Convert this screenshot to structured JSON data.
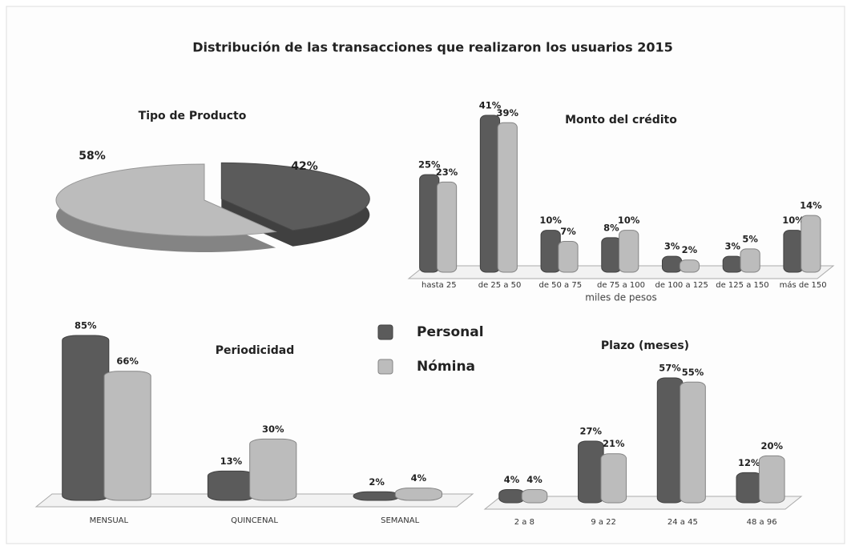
{
  "title": "Distribución de las transacciones que realizaron los usuarios 2015",
  "legend": [
    {
      "name": "Personal",
      "color": "#5b5b5b"
    },
    {
      "name": "Nómina",
      "color": "#bcbcbc"
    }
  ],
  "chart_data": [
    {
      "type": "pie",
      "title": "Tipo de Producto",
      "values": [
        42,
        58
      ],
      "value_labels": [
        "42%",
        "58%"
      ],
      "colors": [
        "#5b5b5b",
        "#bcbcbc"
      ]
    },
    {
      "type": "bar",
      "title": "Monto del crédito",
      "x_label": "miles de pesos",
      "categories": [
        "hasta 25",
        "de 25 a 50",
        "de 50 a 75",
        "de 75 a 100",
        "de 100 a 125",
        "de 125 a 150",
        "más de 150"
      ],
      "series": [
        {
          "values": [
            25,
            41,
            10,
            8,
            3,
            3,
            10
          ],
          "value_labels": [
            "25%",
            "41%",
            "10%",
            "8%",
            "3%",
            "3%",
            "10%"
          ]
        },
        {
          "values": [
            23,
            39,
            7,
            10,
            2,
            5,
            14
          ],
          "value_labels": [
            "23%",
            "39%",
            "7%",
            "10%",
            "2%",
            "5%",
            "14%"
          ]
        }
      ]
    },
    {
      "type": "bar",
      "title": "Periodicidad",
      "categories": [
        "MENSUAL",
        "QUINCENAL",
        "SEMANAL"
      ],
      "series": [
        {
          "values": [
            85,
            13,
            2
          ],
          "value_labels": [
            "85%",
            "13%",
            "2%"
          ]
        },
        {
          "values": [
            66,
            30,
            4
          ],
          "value_labels": [
            "66%",
            "30%",
            "4%"
          ]
        }
      ]
    },
    {
      "type": "bar",
      "title": "Plazo (meses)",
      "categories": [
        "2 a 8",
        "9 a 22",
        "24 a 45",
        "48 a 96"
      ],
      "series": [
        {
          "values": [
            4,
            27,
            57,
            12
          ],
          "value_labels": [
            "4%",
            "27%",
            "57%",
            "12%"
          ]
        },
        {
          "values": [
            4,
            21,
            55,
            20
          ],
          "value_labels": [
            "4%",
            "21%",
            "55%",
            "20%"
          ]
        }
      ]
    }
  ]
}
